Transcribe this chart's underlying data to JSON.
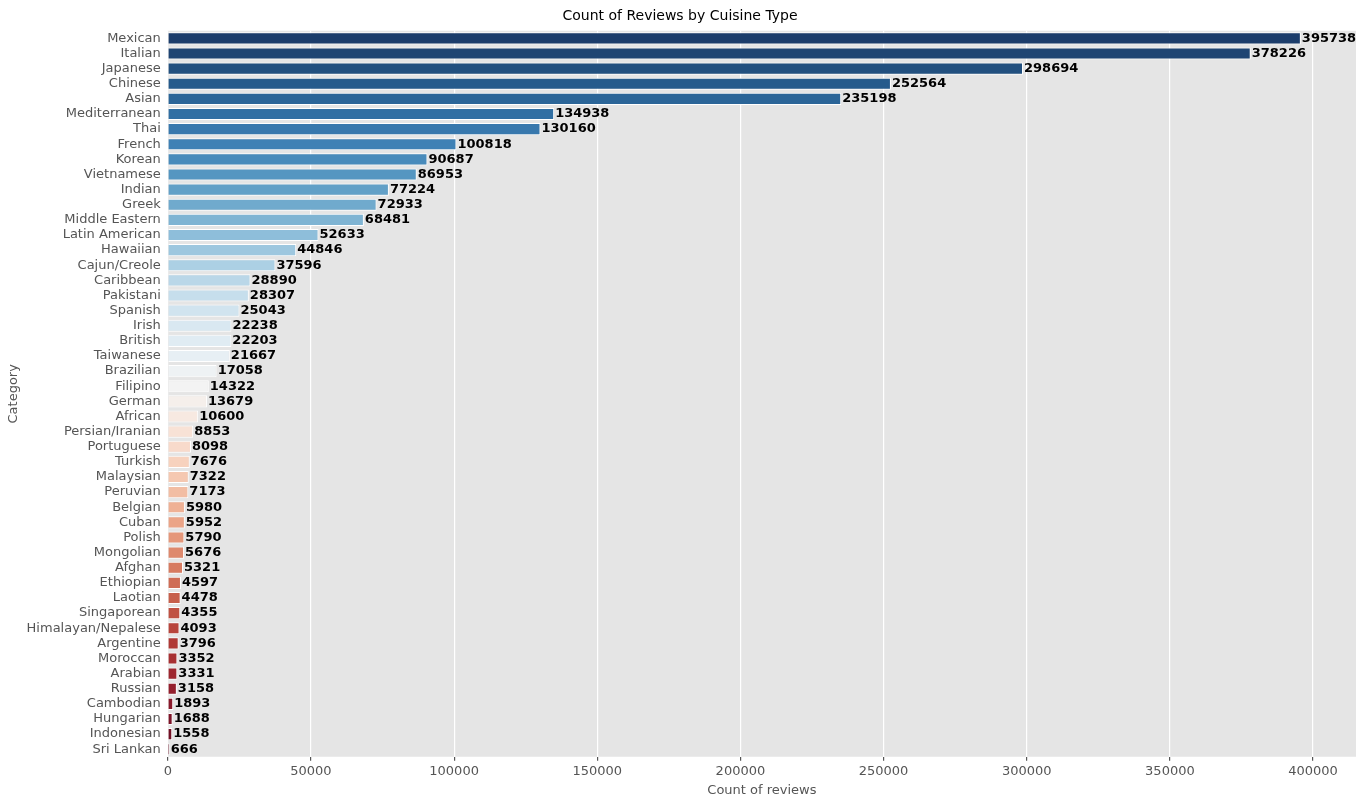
{
  "chart_data": {
    "type": "bar",
    "orientation": "horizontal",
    "title": "Count of Reviews by Cuisine Type",
    "xlabel": "Count of reviews",
    "ylabel": "Category",
    "categories": [
      "Mexican",
      "Italian",
      "Japanese",
      "Chinese",
      "Asian",
      "Mediterranean",
      "Thai",
      "French",
      "Korean",
      "Vietnamese",
      "Indian",
      "Greek",
      "Middle Eastern",
      "Latin American",
      "Hawaiian",
      "Cajun/Creole",
      "Caribbean",
      "Pakistani",
      "Spanish",
      "Irish",
      "British",
      "Taiwanese",
      "Brazilian",
      "Filipino",
      "German",
      "African",
      "Persian/Iranian",
      "Portuguese",
      "Turkish",
      "Malaysian",
      "Peruvian",
      "Belgian",
      "Cuban",
      "Polish",
      "Mongolian",
      "Afghan",
      "Ethiopian",
      "Laotian",
      "Singaporean",
      "Himalayan/Nepalese",
      "Argentine",
      "Moroccan",
      "Arabian",
      "Russian",
      "Cambodian",
      "Hungarian",
      "Indonesian",
      "Sri Lankan"
    ],
    "values": [
      395738,
      378226,
      298694,
      252564,
      235198,
      134938,
      130160,
      100818,
      90687,
      86953,
      77224,
      72933,
      68481,
      52633,
      44846,
      37596,
      28890,
      28307,
      25043,
      22238,
      22203,
      21667,
      17058,
      14322,
      13679,
      10600,
      8853,
      8098,
      7676,
      7322,
      7173,
      5980,
      5952,
      5790,
      5676,
      5321,
      4597,
      4478,
      4355,
      4093,
      3796,
      3352,
      3331,
      3158,
      1893,
      1688,
      1558,
      666
    ],
    "colors": [
      "#1c3d6b",
      "#1f4573",
      "#22507f",
      "#265b8c",
      "#2b6598",
      "#316fa3",
      "#3878ad",
      "#3f81b5",
      "#498bbb",
      "#5596c1",
      "#62a0c7",
      "#70aacd",
      "#7fb4d3",
      "#8ebeda",
      "#9dc7df",
      "#acd0e4",
      "#bad7e8",
      "#c6deec",
      "#d1e4ef",
      "#d9e8f1",
      "#e0ecf3",
      "#e7eff4",
      "#eef2f4",
      "#f3f3f3",
      "#f5efeb",
      "#f7e9e1",
      "#f8e2d6",
      "#f8dacb",
      "#f7d2be",
      "#f5c8b1",
      "#f2bda3",
      "#efb195",
      "#eba487",
      "#e5977a",
      "#de896d",
      "#d77b61",
      "#cf6d56",
      "#c7604c",
      "#c05243",
      "#b8453c",
      "#b03a36",
      "#a73032",
      "#9e272f",
      "#941f2d",
      "#89192b",
      "#7e1428",
      "#731025",
      "#680b22"
    ],
    "xlim": [
      0,
      415000
    ],
    "xticks": [
      0,
      50000,
      100000,
      150000,
      200000,
      250000,
      300000,
      350000,
      400000
    ],
    "grid": "x",
    "data_labels": true
  }
}
